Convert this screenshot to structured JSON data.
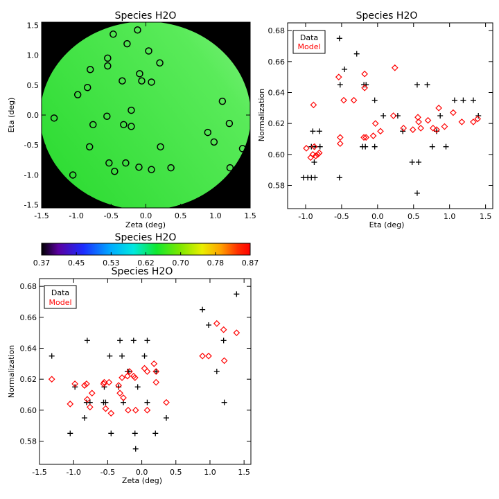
{
  "chart_data": [
    {
      "type": "heatmap",
      "title": "Species H2O",
      "xlabel": "Zeta (deg)",
      "ylabel": "Eta (deg)",
      "xlim": [
        -1.5,
        1.5
      ],
      "ylim": [
        -1.55,
        1.55
      ],
      "xticks": [
        "-1.5",
        "-1.0",
        "-0.5",
        "0.0",
        "0.5",
        "1.0",
        "1.5"
      ],
      "yticks": [
        "1.5",
        "1.0",
        "0.5",
        "0.0",
        "-0.5",
        "-1.0",
        "-1.5"
      ],
      "colors": {
        "field_dark": "#33dd33",
        "field_light": "#6df26d",
        "background": "#000000"
      },
      "points": [
        {
          "x": -0.47,
          "y": 1.35
        },
        {
          "x": -0.12,
          "y": 1.42
        },
        {
          "x": -0.27,
          "y": 1.19
        },
        {
          "x": 0.04,
          "y": 1.07
        },
        {
          "x": -0.55,
          "y": 0.95
        },
        {
          "x": -0.55,
          "y": 0.82
        },
        {
          "x": -0.8,
          "y": 0.76
        },
        {
          "x": 0.2,
          "y": 0.87
        },
        {
          "x": -0.09,
          "y": 0.69
        },
        {
          "x": -0.34,
          "y": 0.57
        },
        {
          "x": -0.06,
          "y": 0.57
        },
        {
          "x": 0.08,
          "y": 0.55
        },
        {
          "x": -0.84,
          "y": 0.46
        },
        {
          "x": -0.98,
          "y": 0.34
        },
        {
          "x": 1.1,
          "y": 0.23
        },
        {
          "x": -0.21,
          "y": 0.08
        },
        {
          "x": -1.32,
          "y": -0.05
        },
        {
          "x": -0.56,
          "y": -0.02
        },
        {
          "x": -0.76,
          "y": -0.16
        },
        {
          "x": -0.32,
          "y": -0.16
        },
        {
          "x": -0.21,
          "y": -0.19
        },
        {
          "x": 1.2,
          "y": -0.14
        },
        {
          "x": 0.89,
          "y": -0.29
        },
        {
          "x": 0.98,
          "y": -0.45
        },
        {
          "x": -0.81,
          "y": -0.53
        },
        {
          "x": 0.21,
          "y": -0.53
        },
        {
          "x": 1.39,
          "y": -0.56
        },
        {
          "x": -0.29,
          "y": -0.8
        },
        {
          "x": -0.53,
          "y": -0.8
        },
        {
          "x": -0.1,
          "y": -0.87
        },
        {
          "x": 0.36,
          "y": -0.88
        },
        {
          "x": 1.21,
          "y": -0.88
        },
        {
          "x": 0.08,
          "y": -0.91
        },
        {
          "x": -0.45,
          "y": -0.94
        },
        {
          "x": -1.05,
          "y": -1.0
        }
      ]
    },
    {
      "type": "scatter",
      "title": "Species H2O",
      "xlabel": "Eta (deg)",
      "ylabel": "Normalization",
      "xlim": [
        -1.25,
        1.6
      ],
      "ylim": [
        0.565,
        0.685
      ],
      "xticks": [
        "-1.0",
        "-0.5",
        "0.0",
        "0.5",
        "1.0",
        "1.5"
      ],
      "yticks": [
        "0.68",
        "0.66",
        "0.64",
        "0.62",
        "0.60",
        "0.58"
      ],
      "legend": {
        "placement": "top-left",
        "items": [
          "Data",
          "Model"
        ]
      },
      "series": [
        {
          "name": "Data",
          "marker": "plus",
          "color": "#000000",
          "points": [
            {
              "x": -1.03,
              "y": 0.585
            },
            {
              "x": -0.97,
              "y": 0.585
            },
            {
              "x": -0.92,
              "y": 0.585
            },
            {
              "x": -0.87,
              "y": 0.585
            },
            {
              "x": -0.9,
              "y": 0.615
            },
            {
              "x": -0.81,
              "y": 0.615
            },
            {
              "x": -0.92,
              "y": 0.605
            },
            {
              "x": -0.87,
              "y": 0.605
            },
            {
              "x": -0.8,
              "y": 0.605
            },
            {
              "x": -0.88,
              "y": 0.595
            },
            {
              "x": -0.53,
              "y": 0.675
            },
            {
              "x": -0.29,
              "y": 0.665
            },
            {
              "x": -0.46,
              "y": 0.655
            },
            {
              "x": -0.52,
              "y": 0.645
            },
            {
              "x": -0.19,
              "y": 0.645
            },
            {
              "x": -0.16,
              "y": 0.645
            },
            {
              "x": -0.04,
              "y": 0.635
            },
            {
              "x": -0.21,
              "y": 0.605
            },
            {
              "x": -0.17,
              "y": 0.605
            },
            {
              "x": -0.04,
              "y": 0.605
            },
            {
              "x": 0.08,
              "y": 0.625
            },
            {
              "x": 0.28,
              "y": 0.625
            },
            {
              "x": 0.35,
              "y": 0.615
            },
            {
              "x": -0.53,
              "y": 0.585
            },
            {
              "x": 0.48,
              "y": 0.595
            },
            {
              "x": 0.57,
              "y": 0.595
            },
            {
              "x": 0.55,
              "y": 0.575
            },
            {
              "x": 0.55,
              "y": 0.645
            },
            {
              "x": 0.69,
              "y": 0.645
            },
            {
              "x": 0.76,
              "y": 0.605
            },
            {
              "x": 0.82,
              "y": 0.615
            },
            {
              "x": 0.87,
              "y": 0.625
            },
            {
              "x": 0.95,
              "y": 0.605
            },
            {
              "x": 1.07,
              "y": 0.635
            },
            {
              "x": 1.19,
              "y": 0.635
            },
            {
              "x": 1.33,
              "y": 0.635
            },
            {
              "x": 1.4,
              "y": 0.625
            }
          ]
        },
        {
          "name": "Model",
          "marker": "diamond",
          "color": "#ff0000",
          "points": [
            {
              "x": -0.99,
              "y": 0.604
            },
            {
              "x": -0.93,
              "y": 0.598
            },
            {
              "x": -0.9,
              "y": 0.6
            },
            {
              "x": -0.88,
              "y": 0.605
            },
            {
              "x": -0.86,
              "y": 0.599
            },
            {
              "x": -0.83,
              "y": 0.6
            },
            {
              "x": -0.81,
              "y": 0.601
            },
            {
              "x": -0.89,
              "y": 0.632
            },
            {
              "x": -0.54,
              "y": 0.65
            },
            {
              "x": -0.52,
              "y": 0.611
            },
            {
              "x": -0.52,
              "y": 0.607
            },
            {
              "x": -0.47,
              "y": 0.635
            },
            {
              "x": -0.33,
              "y": 0.635
            },
            {
              "x": -0.18,
              "y": 0.652
            },
            {
              "x": -0.18,
              "y": 0.643
            },
            {
              "x": -0.19,
              "y": 0.611
            },
            {
              "x": -0.16,
              "y": 0.611
            },
            {
              "x": -0.06,
              "y": 0.612
            },
            {
              "x": -0.03,
              "y": 0.62
            },
            {
              "x": 0.04,
              "y": 0.615
            },
            {
              "x": 0.24,
              "y": 0.656
            },
            {
              "x": 0.22,
              "y": 0.625
            },
            {
              "x": 0.36,
              "y": 0.617
            },
            {
              "x": 0.49,
              "y": 0.616
            },
            {
              "x": 0.56,
              "y": 0.624
            },
            {
              "x": 0.57,
              "y": 0.621
            },
            {
              "x": 0.6,
              "y": 0.617
            },
            {
              "x": 0.7,
              "y": 0.622
            },
            {
              "x": 0.77,
              "y": 0.617
            },
            {
              "x": 0.82,
              "y": 0.616
            },
            {
              "x": 0.85,
              "y": 0.63
            },
            {
              "x": 0.93,
              "y": 0.618
            },
            {
              "x": 1.05,
              "y": 0.627
            },
            {
              "x": 1.17,
              "y": 0.621
            },
            {
              "x": 1.33,
              "y": 0.621
            },
            {
              "x": 1.39,
              "y": 0.623
            }
          ]
        }
      ]
    },
    {
      "type": "scatter",
      "title": "Species H2O",
      "xlabel": "Zeta (deg)",
      "ylabel": "Normalization",
      "xlim": [
        -1.5,
        1.6
      ],
      "ylim": [
        0.565,
        0.685
      ],
      "xticks": [
        "-1.5",
        "-1.0",
        "-0.5",
        "0.0",
        "0.5",
        "1.0",
        "1.5"
      ],
      "yticks": [
        "0.68",
        "0.66",
        "0.64",
        "0.62",
        "0.60",
        "0.58"
      ],
      "legend": {
        "placement": "top-left",
        "items": [
          "Data",
          "Model"
        ]
      },
      "series": [
        {
          "name": "Data",
          "marker": "plus",
          "color": "#000000",
          "points": [
            {
              "x": -1.32,
              "y": 0.635
            },
            {
              "x": -0.98,
              "y": 0.615
            },
            {
              "x": -1.05,
              "y": 0.585
            },
            {
              "x": -0.84,
              "y": 0.595
            },
            {
              "x": -0.8,
              "y": 0.645
            },
            {
              "x": -0.76,
              "y": 0.605
            },
            {
              "x": -0.81,
              "y": 0.605
            },
            {
              "x": -0.56,
              "y": 0.605
            },
            {
              "x": -0.53,
              "y": 0.605
            },
            {
              "x": -0.55,
              "y": 0.615
            },
            {
              "x": -0.47,
              "y": 0.635
            },
            {
              "x": -0.45,
              "y": 0.585
            },
            {
              "x": -0.32,
              "y": 0.645
            },
            {
              "x": -0.29,
              "y": 0.635
            },
            {
              "x": -0.27,
              "y": 0.605
            },
            {
              "x": -0.21,
              "y": 0.625
            },
            {
              "x": -0.19,
              "y": 0.625
            },
            {
              "x": -0.12,
              "y": 0.645
            },
            {
              "x": -0.1,
              "y": 0.585
            },
            {
              "x": -0.09,
              "y": 0.575
            },
            {
              "x": -0.06,
              "y": 0.615
            },
            {
              "x": 0.04,
              "y": 0.635
            },
            {
              "x": 0.08,
              "y": 0.645
            },
            {
              "x": 0.08,
              "y": 0.605
            },
            {
              "x": 0.21,
              "y": 0.625
            },
            {
              "x": 0.2,
              "y": 0.585
            },
            {
              "x": 0.36,
              "y": 0.595
            },
            {
              "x": -0.34,
              "y": 0.615
            },
            {
              "x": 0.89,
              "y": 0.665
            },
            {
              "x": 0.98,
              "y": 0.655
            },
            {
              "x": 1.1,
              "y": 0.625
            },
            {
              "x": 1.2,
              "y": 0.645
            },
            {
              "x": 1.21,
              "y": 0.605
            },
            {
              "x": 1.39,
              "y": 0.675
            }
          ]
        },
        {
          "name": "Model",
          "marker": "diamond",
          "color": "#ff0000",
          "points": [
            {
              "x": -1.32,
              "y": 0.62
            },
            {
              "x": -1.05,
              "y": 0.604
            },
            {
              "x": -0.98,
              "y": 0.617
            },
            {
              "x": -0.84,
              "y": 0.616
            },
            {
              "x": -0.81,
              "y": 0.617
            },
            {
              "x": -0.8,
              "y": 0.607
            },
            {
              "x": -0.76,
              "y": 0.602
            },
            {
              "x": -0.73,
              "y": 0.611
            },
            {
              "x": -0.56,
              "y": 0.617
            },
            {
              "x": -0.55,
              "y": 0.618
            },
            {
              "x": -0.53,
              "y": 0.601
            },
            {
              "x": -0.48,
              "y": 0.618
            },
            {
              "x": -0.45,
              "y": 0.598
            },
            {
              "x": -0.34,
              "y": 0.616
            },
            {
              "x": -0.32,
              "y": 0.611
            },
            {
              "x": -0.29,
              "y": 0.621
            },
            {
              "x": -0.27,
              "y": 0.608
            },
            {
              "x": -0.21,
              "y": 0.622
            },
            {
              "x": -0.2,
              "y": 0.6
            },
            {
              "x": -0.18,
              "y": 0.625
            },
            {
              "x": -0.12,
              "y": 0.622
            },
            {
              "x": -0.1,
              "y": 0.621
            },
            {
              "x": -0.09,
              "y": 0.6
            },
            {
              "x": 0.04,
              "y": 0.627
            },
            {
              "x": 0.08,
              "y": 0.625
            },
            {
              "x": 0.08,
              "y": 0.6
            },
            {
              "x": 0.18,
              "y": 0.63
            },
            {
              "x": 0.21,
              "y": 0.618
            },
            {
              "x": 0.21,
              "y": 0.625
            },
            {
              "x": 0.36,
              "y": 0.605
            },
            {
              "x": 0.89,
              "y": 0.635
            },
            {
              "x": 0.98,
              "y": 0.635
            },
            {
              "x": 1.1,
              "y": 0.656
            },
            {
              "x": 1.2,
              "y": 0.652
            },
            {
              "x": 1.21,
              "y": 0.632
            },
            {
              "x": 1.39,
              "y": 0.65
            }
          ]
        }
      ]
    }
  ],
  "colorbar": {
    "title": "Species H2O",
    "ticks": [
      "0.37",
      "0.45",
      "0.53",
      "0.62",
      "0.70",
      "0.78",
      "0.87"
    ]
  }
}
